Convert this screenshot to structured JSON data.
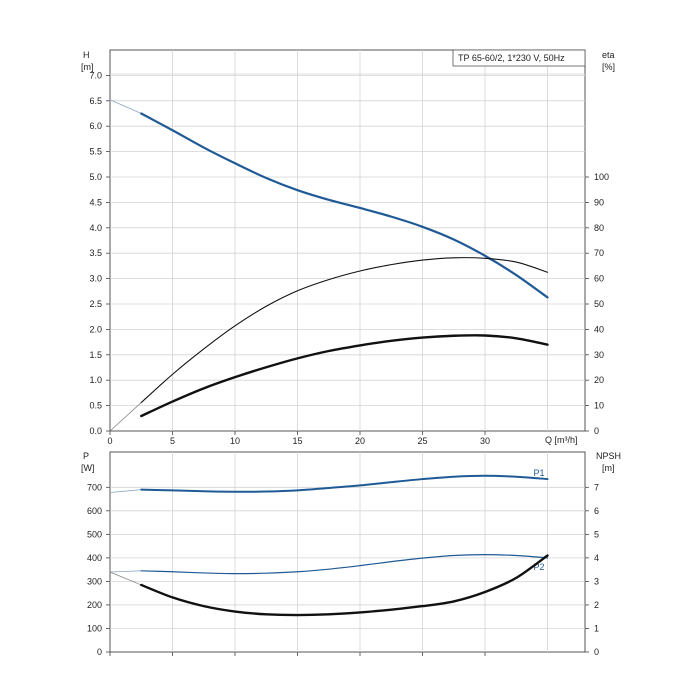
{
  "chart_data": [
    {
      "type": "line",
      "legend_box": "TP 65-60/2, 1*230 V, 50Hz",
      "xlabel": "Q [m³/h]",
      "ylabel": "H",
      "ylabel_unit": "[m]",
      "y2label": "eta",
      "y2label_unit": "[%]",
      "xlim": [
        0,
        38
      ],
      "ylim": [
        0,
        7.5
      ],
      "y2lim": [
        0,
        150
      ],
      "x_ticks": [
        "0",
        "5",
        "10",
        "15",
        "20",
        "25",
        "30"
      ],
      "y_ticks": [
        "0.0",
        "0.5",
        "1.0",
        "1.5",
        "2.0",
        "2.5",
        "3.0",
        "3.5",
        "4.0",
        "4.5",
        "5.0",
        "5.5",
        "6.0",
        "6.5",
        "7.0"
      ],
      "y2_ticks": [
        "0",
        "10",
        "20",
        "30",
        "40",
        "50",
        "60",
        "70",
        "80",
        "90",
        "100"
      ],
      "grid": true,
      "series": [
        {
          "color": "#1f5a96",
          "axis": "left",
          "x": [
            2.5,
            5,
            7.5,
            10,
            12.5,
            15,
            17.5,
            20,
            22.5,
            25,
            27.5,
            30,
            32.5,
            35
          ],
          "values": [
            6.25,
            5.92,
            5.58,
            5.27,
            4.98,
            4.74,
            4.55,
            4.39,
            4.22,
            4.02,
            3.77,
            3.45,
            3.07,
            2.63
          ]
        },
        {
          "color": "#111111",
          "axis": "right",
          "x": [
            2.5,
            5,
            7.5,
            10,
            12.5,
            15,
            17.5,
            20,
            22.5,
            25,
            27.5,
            30,
            32.5,
            35
          ],
          "values": [
            11.2,
            22.3,
            32.3,
            41.4,
            49.1,
            55.2,
            59.6,
            63.0,
            65.5,
            67.3,
            68.2,
            68.0,
            66.5,
            62.5
          ]
        },
        {
          "color": "#111111",
          "axis": "right",
          "x": [
            2.5,
            5,
            7.5,
            10,
            12.5,
            15,
            17.5,
            20,
            22.5,
            25,
            27.5,
            30,
            32.5,
            35
          ],
          "values": [
            5.9,
            11.6,
            16.8,
            21.2,
            25.1,
            28.6,
            31.5,
            33.7,
            35.5,
            36.8,
            37.5,
            37.6,
            36.5,
            34.0
          ]
        }
      ],
      "extrapolated_start": {
        "x": [
          0,
          2.5
        ],
        "left_H": [
          6.52,
          6.25
        ],
        "right_eta": [
          0,
          11.2
        ]
      }
    },
    {
      "type": "line",
      "ylabel": "P",
      "ylabel_unit": "[W]",
      "y2label": "NPSH",
      "y2label_unit": "[m]",
      "xlim": [
        0,
        38
      ],
      "ylim": [
        0,
        850
      ],
      "y2lim": [
        0,
        8.5
      ],
      "y_ticks": [
        "0",
        "100",
        "200",
        "300",
        "400",
        "500",
        "600",
        "700"
      ],
      "y2_ticks": [
        "0",
        "1",
        "2",
        "3",
        "4",
        "5",
        "6",
        "7"
      ],
      "grid": true,
      "series": [
        {
          "name": "P1",
          "color": "#1f5a96",
          "axis": "left",
          "x": [
            2.5,
            5,
            7.5,
            10,
            12.5,
            15,
            17.5,
            20,
            22.5,
            25,
            27.5,
            30,
            32.5,
            35
          ],
          "values": [
            690,
            687,
            683,
            681,
            682,
            687,
            697,
            708,
            722,
            735,
            745,
            749,
            745,
            735
          ]
        },
        {
          "name": "P2",
          "color": "#1f5a96",
          "axis": "left",
          "x": [
            2.5,
            5,
            7.5,
            10,
            12.5,
            15,
            17.5,
            20,
            22.5,
            25,
            27.5,
            30,
            32.5,
            35
          ],
          "values": [
            345,
            341,
            336,
            333,
            335,
            341,
            352,
            367,
            384,
            399,
            410,
            414,
            410,
            400
          ]
        },
        {
          "color": "#111111",
          "axis": "right",
          "x": [
            2.5,
            5,
            7.5,
            10,
            12.5,
            15,
            17.5,
            20,
            22.5,
            25,
            27.5,
            30,
            32.5,
            35
          ],
          "values": [
            2.85,
            2.32,
            1.95,
            1.72,
            1.6,
            1.57,
            1.6,
            1.68,
            1.8,
            1.95,
            2.15,
            2.55,
            3.15,
            4.1
          ]
        }
      ],
      "extrapolated_start": {
        "x": [
          0,
          2.5
        ],
        "P1": [
          678,
          690
        ],
        "P2": [
          340,
          345
        ],
        "npsh_right": [
          3.4,
          2.85
        ]
      }
    }
  ]
}
